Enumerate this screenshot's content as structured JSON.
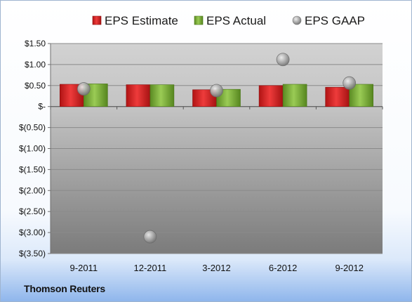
{
  "chart_data": {
    "type": "bar",
    "categories": [
      "9-2011",
      "12-2011",
      "3-2012",
      "6-2012",
      "9-2012"
    ],
    "series": [
      {
        "name": "EPS Estimate",
        "kind": "bar",
        "color": "#d42a2a",
        "values": [
          0.53,
          0.52,
          0.4,
          0.5,
          0.46
        ]
      },
      {
        "name": "EPS Actual",
        "kind": "bar",
        "color": "#7aac3a",
        "values": [
          0.54,
          0.52,
          0.41,
          0.53,
          0.53
        ]
      },
      {
        "name": "EPS GAAP",
        "kind": "scatter",
        "color": "#a8a8a8",
        "values": [
          0.42,
          -3.1,
          0.38,
          1.12,
          0.56
        ]
      }
    ],
    "ylim": [
      -3.5,
      1.5
    ],
    "yticks": [
      1.5,
      1.0,
      0.5,
      0,
      -0.5,
      -1.0,
      -1.5,
      -2.0,
      -2.5,
      -3.0,
      -3.5
    ],
    "ytick_labels": [
      "$1.50",
      "$1.00",
      "$0.50",
      "$-",
      "$(0.50)",
      "$(1.00)",
      "$(1.50)",
      "$(2.00)",
      "$(2.50)",
      "$(3.00)",
      "$(3.50)"
    ],
    "grid": true,
    "legend": "top",
    "title": "",
    "xlabel": "",
    "ylabel": ""
  },
  "source_label": "Thomson Reuters"
}
